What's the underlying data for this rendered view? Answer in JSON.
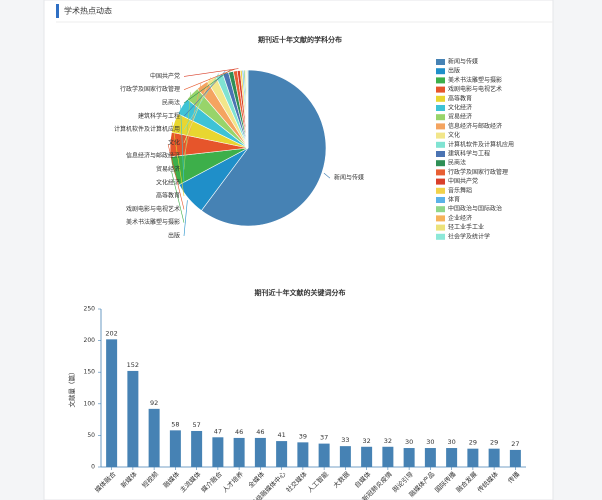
{
  "header": {
    "title": "学术热点动态"
  },
  "chart_data": [
    {
      "type": "pie",
      "title": "期刊近十年文献的学科分布",
      "categories": [
        "新闻与传媒",
        "出版",
        "美术书法雕塑与摄影",
        "戏剧电影与电视艺术",
        "高等教育",
        "文化经济",
        "贸易经济",
        "信息经济与邮政经济",
        "文化",
        "计算机软件及计算机应用",
        "建筑科学与工程",
        "民商法",
        "行政学及国家行政管理",
        "中国共产党",
        "音乐舞蹈",
        "体育",
        "中国政治与国际政治",
        "企业经济",
        "轻工业手工业",
        "社会学及统计学"
      ],
      "values": [
        60,
        7,
        6,
        5,
        4,
        3.5,
        3,
        2.5,
        2,
        1.5,
        1.2,
        1,
        0.8,
        0.6,
        0.4,
        0.3,
        0.3,
        0.2,
        0.2,
        0.2
      ],
      "colors": [
        "#4682b4",
        "#1f8fc9",
        "#3daf4a",
        "#e6552b",
        "#e8d630",
        "#3ec3d6",
        "#98d46a",
        "#f4a460",
        "#f2e68a",
        "#80e3d2",
        "#4b74b3",
        "#2f8f56",
        "#e85f34",
        "#d93f2a",
        "#f1d24a",
        "#5ab2e8",
        "#8fd68a",
        "#f6b25a",
        "#ece27a",
        "#8de8d8"
      ],
      "legend": "right"
    },
    {
      "type": "bar",
      "title": "期刊近十年文献的关键词分布",
      "ylabel": "文献量（篇）",
      "categories": [
        "媒体融合",
        "新媒体",
        "短视频",
        "融媒体",
        "主流媒体",
        "媒介融合",
        "人才培养",
        "全媒体",
        "县级融媒体中心",
        "社交媒体",
        "人工智能",
        "大数据",
        "自媒体",
        "新冠肺炎疫情",
        "舆论引导",
        "融媒体产品",
        "国际传播",
        "融合发展",
        "传统媒体",
        "传播"
      ],
      "values": [
        202,
        152,
        92,
        58,
        57,
        47,
        46,
        46,
        41,
        39,
        37,
        33,
        32,
        32,
        30,
        30,
        30,
        29,
        29,
        27
      ],
      "color": "#4682b4",
      "ylim": [
        0,
        250
      ],
      "yticks": [
        0,
        50,
        100,
        150,
        200,
        250
      ]
    }
  ]
}
